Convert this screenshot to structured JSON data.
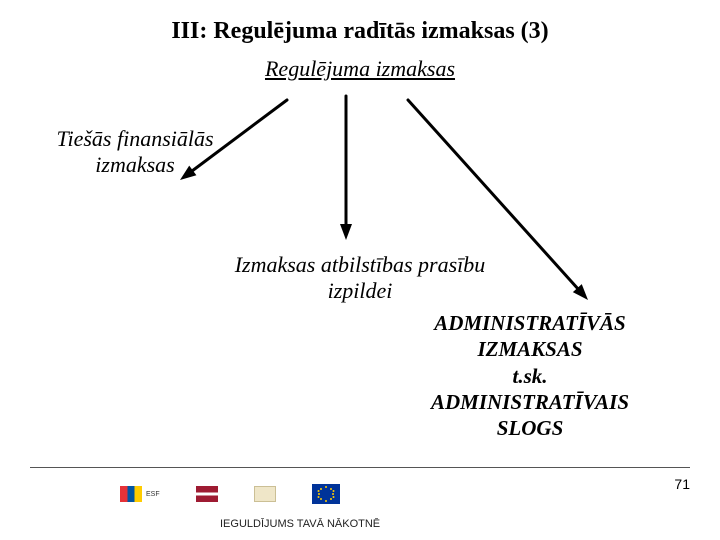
{
  "slide": {
    "title": "III: Regulējuma radītās izmaksas (3)",
    "subtitle": "Regulējuma izmaksas",
    "label_direct_financial": "Tiešās finansiālās izmaksas",
    "label_compliance": "Izmaksas atbilstības prasību izpildei",
    "label_admin_costs_l1": "ADMINISTRATĪVĀS",
    "label_admin_costs_l2": "IZMAKSAS",
    "label_admin_costs_l3": "t.sk.",
    "label_admin_costs_l4": "ADMINISTRATĪVAIS",
    "label_admin_costs_l5": "SLOGS",
    "page_number": "71",
    "footer_caption": "IEGULDĪJUMS TAVĀ NĀKOTNĒ"
  },
  "typography": {
    "title_fontsize": 24,
    "subtitle_fontsize": 22,
    "label_fontsize": 22,
    "admin_fontsize": 21,
    "pagenum_fontsize": 14,
    "footer_fontsize": 11
  },
  "colors": {
    "text": "#000000",
    "background": "#ffffff",
    "arrow": "#000000",
    "rule": "#555555"
  },
  "arrows": {
    "stroke_width": 3,
    "head_length": 16,
    "head_width": 12,
    "segments": [
      {
        "from": [
          287,
          100
        ],
        "to": [
          180,
          180
        ]
      },
      {
        "from": [
          346,
          96
        ],
        "to": [
          346,
          240
        ]
      },
      {
        "from": [
          408,
          100
        ],
        "to": [
          588,
          300
        ]
      }
    ]
  },
  "logos": {
    "esf": {
      "bg": "#ffcc00",
      "bars": [
        "#e53238",
        "#0055a4",
        "#ffffff"
      ],
      "label": "ESF"
    },
    "lv": {
      "stripes": [
        "#9e1b32",
        "#ffffff",
        "#9e1b32"
      ]
    },
    "sif": {
      "bg": "#efe6c8"
    },
    "eu": {
      "bg": "#003399",
      "star": "#ffcc00"
    }
  }
}
